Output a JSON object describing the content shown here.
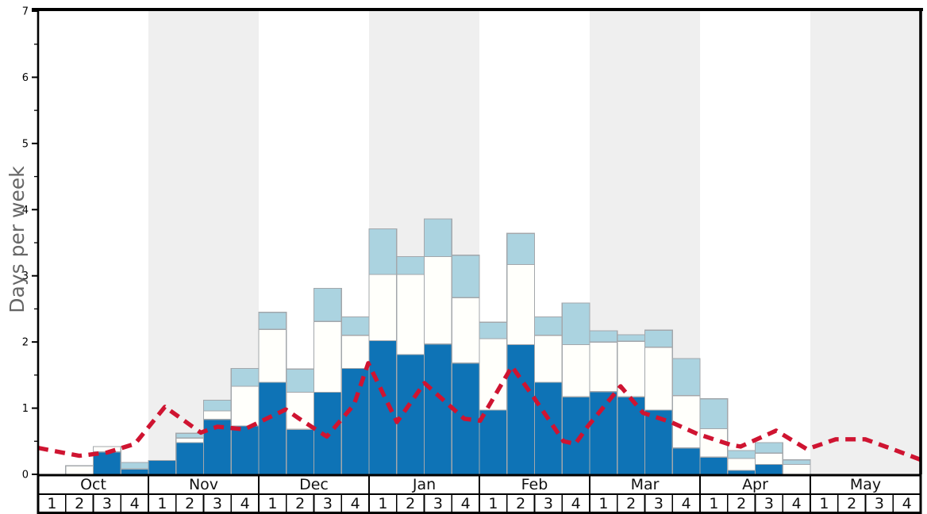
{
  "chart_data": {
    "type": "bar",
    "title": "",
    "ylabel": "Days per week",
    "xlabel": "",
    "ylim": [
      0,
      7
    ],
    "y_major_ticks": [
      0,
      1,
      2,
      3,
      4,
      5,
      6,
      7
    ],
    "y_minor_tick_step": 0.5,
    "legend_position": "none",
    "grid": "off",
    "x_axis": {
      "months": [
        "Oct",
        "Nov",
        "Dec",
        "Jan",
        "Feb",
        "Mar",
        "Apr",
        "May"
      ],
      "weeks_per_month": [
        "1",
        "2",
        "3",
        "4"
      ],
      "shaded_months": [
        "Nov",
        "Jan",
        "Mar",
        "May"
      ]
    },
    "stack_order": [
      "dark_blue",
      "white",
      "light_blue"
    ],
    "bars_format": "stacked segment heights in days-per-week, bottom-to-top: dark_blue, white, light_blue",
    "bars": [
      {
        "month": "Oct",
        "week": 1,
        "dark_blue": 0,
        "white": 0,
        "light_blue": 0
      },
      {
        "month": "Oct",
        "week": 2,
        "dark_blue": 0,
        "white": 0.13,
        "light_blue": 0
      },
      {
        "month": "Oct",
        "week": 3,
        "dark_blue": 0.34,
        "white": 0.08,
        "light_blue": 0
      },
      {
        "month": "Oct",
        "week": 4,
        "dark_blue": 0.08,
        "white": 0,
        "light_blue": 0.1
      },
      {
        "month": "Nov",
        "week": 1,
        "dark_blue": 0.21,
        "white": 0,
        "light_blue": 0
      },
      {
        "month": "Nov",
        "week": 2,
        "dark_blue": 0.48,
        "white": 0.07,
        "light_blue": 0.07
      },
      {
        "month": "Nov",
        "week": 3,
        "dark_blue": 0.83,
        "white": 0.13,
        "light_blue": 0.16
      },
      {
        "month": "Nov",
        "week": 4,
        "dark_blue": 0.73,
        "white": 0.6,
        "light_blue": 0.27
      },
      {
        "month": "Dec",
        "week": 1,
        "dark_blue": 1.39,
        "white": 0.8,
        "light_blue": 0.26
      },
      {
        "month": "Dec",
        "week": 2,
        "dark_blue": 0.68,
        "white": 0.56,
        "light_blue": 0.35
      },
      {
        "month": "Dec",
        "week": 3,
        "dark_blue": 1.24,
        "white": 1.07,
        "light_blue": 0.5
      },
      {
        "month": "Dec",
        "week": 4,
        "dark_blue": 1.6,
        "white": 0.5,
        "light_blue": 0.28
      },
      {
        "month": "Jan",
        "week": 1,
        "dark_blue": 2.02,
        "white": 1.0,
        "light_blue": 0.69
      },
      {
        "month": "Jan",
        "week": 2,
        "dark_blue": 1.81,
        "white": 1.21,
        "light_blue": 0.27
      },
      {
        "month": "Jan",
        "week": 3,
        "dark_blue": 1.97,
        "white": 1.32,
        "light_blue": 0.57
      },
      {
        "month": "Jan",
        "week": 4,
        "dark_blue": 1.68,
        "white": 0.99,
        "light_blue": 0.64
      },
      {
        "month": "Feb",
        "week": 1,
        "dark_blue": 0.97,
        "white": 1.08,
        "light_blue": 0.25
      },
      {
        "month": "Feb",
        "week": 2,
        "dark_blue": 1.96,
        "white": 1.21,
        "light_blue": 0.47
      },
      {
        "month": "Feb",
        "week": 3,
        "dark_blue": 1.39,
        "white": 0.71,
        "light_blue": 0.28
      },
      {
        "month": "Feb",
        "week": 4,
        "dark_blue": 1.17,
        "white": 0.79,
        "light_blue": 0.63
      },
      {
        "month": "Mar",
        "week": 1,
        "dark_blue": 1.25,
        "white": 0.75,
        "light_blue": 0.17
      },
      {
        "month": "Mar",
        "week": 2,
        "dark_blue": 1.17,
        "white": 0.84,
        "light_blue": 0.1
      },
      {
        "month": "Mar",
        "week": 3,
        "dark_blue": 0.97,
        "white": 0.95,
        "light_blue": 0.26
      },
      {
        "month": "Mar",
        "week": 4,
        "dark_blue": 0.4,
        "white": 0.79,
        "light_blue": 0.56
      },
      {
        "month": "Apr",
        "week": 1,
        "dark_blue": 0.26,
        "white": 0.43,
        "light_blue": 0.45
      },
      {
        "month": "Apr",
        "week": 2,
        "dark_blue": 0.06,
        "white": 0.18,
        "light_blue": 0.12
      },
      {
        "month": "Apr",
        "week": 3,
        "dark_blue": 0.15,
        "white": 0.17,
        "light_blue": 0.16
      },
      {
        "month": "Apr",
        "week": 4,
        "dark_blue": 0,
        "white": 0.15,
        "light_blue": 0.07
      },
      {
        "month": "May",
        "week": 1,
        "dark_blue": 0,
        "white": 0,
        "light_blue": 0
      },
      {
        "month": "May",
        "week": 2,
        "dark_blue": 0,
        "white": 0,
        "light_blue": 0
      },
      {
        "month": "May",
        "week": 3,
        "dark_blue": 0,
        "white": 0,
        "light_blue": 0
      },
      {
        "month": "May",
        "week": 4,
        "dark_blue": 0,
        "white": 0,
        "light_blue": 0
      }
    ],
    "red_dashed_line": {
      "points_format": "[x in weeks from chart left edge (0=start Oct wk1, 32=end May wk4), days per week]",
      "points": [
        [
          0,
          0.4
        ],
        [
          0.49,
          0.36
        ],
        [
          1.5,
          0.28
        ],
        [
          2.5,
          0.33
        ],
        [
          3.51,
          0.46
        ],
        [
          4.6,
          1.02
        ],
        [
          5.9,
          0.63
        ],
        [
          6.5,
          0.72
        ],
        [
          7.48,
          0.68
        ],
        [
          8.98,
          0.98
        ],
        [
          9.47,
          0.84
        ],
        [
          10.47,
          0.57
        ],
        [
          11.45,
          1.05
        ],
        [
          11.97,
          1.68
        ],
        [
          13.01,
          0.79
        ],
        [
          14.01,
          1.38
        ],
        [
          15.45,
          0.84
        ],
        [
          16.03,
          0.81
        ],
        [
          17.18,
          1.63
        ],
        [
          17.96,
          1.17
        ],
        [
          19.05,
          0.5
        ],
        [
          19.48,
          0.46
        ],
        [
          19.94,
          0.73
        ],
        [
          21.12,
          1.33
        ],
        [
          21.93,
          0.93
        ],
        [
          22.94,
          0.79
        ],
        [
          23.91,
          0.61
        ],
        [
          25.09,
          0.45
        ],
        [
          25.47,
          0.42
        ],
        [
          26.76,
          0.66
        ],
        [
          27.88,
          0.38
        ],
        [
          28.92,
          0.53
        ],
        [
          29.99,
          0.53
        ],
        [
          31.05,
          0.37
        ],
        [
          32,
          0.22
        ]
      ]
    },
    "colors": {
      "dark_blue": "#0e73b6",
      "white": "#fffffb",
      "light_blue": "#abd3e0",
      "red_line": "#cf1431",
      "month_band": "#efefef",
      "bar_border": "#a3a7ab",
      "axis": "#000000",
      "ylabel_gray": "#666666"
    }
  }
}
